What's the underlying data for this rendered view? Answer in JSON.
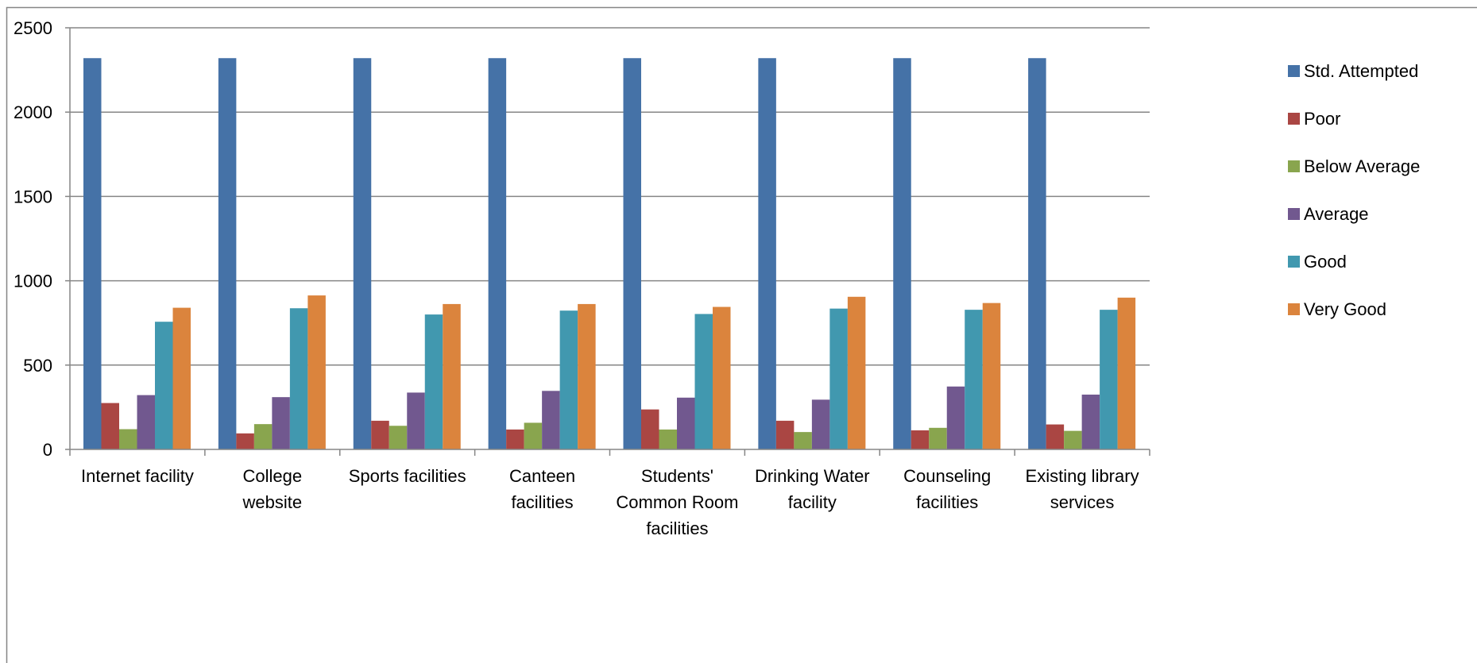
{
  "chart_data": {
    "type": "bar",
    "title": "",
    "xlabel": "",
    "ylabel": "",
    "ylim": [
      0,
      2500
    ],
    "yticks": [
      0,
      500,
      1000,
      1500,
      2000,
      2500
    ],
    "grid": true,
    "legend_position": "right",
    "categories": [
      [
        "Internet facility"
      ],
      [
        "College",
        "website"
      ],
      [
        "Sports facilities"
      ],
      [
        "Canteen",
        "facilities"
      ],
      [
        "Students'",
        "Common Room",
        "facilities"
      ],
      [
        "Drinking Water",
        "facility"
      ],
      [
        "Counseling",
        "facilities"
      ],
      [
        "Existing library",
        "services"
      ]
    ],
    "series": [
      {
        "name": "Std. Attempted",
        "color": "#4572A7",
        "values": [
          2320,
          2320,
          2320,
          2320,
          2320,
          2320,
          2320,
          2320
        ]
      },
      {
        "name": "Poor",
        "color": "#AA4643",
        "values": [
          275,
          95,
          170,
          118,
          237,
          170,
          113,
          148
        ]
      },
      {
        "name": "Below Average",
        "color": "#89A54E",
        "values": [
          120,
          150,
          140,
          158,
          118,
          103,
          128,
          110
        ]
      },
      {
        "name": "Average",
        "color": "#71588F",
        "values": [
          322,
          310,
          337,
          347,
          307,
          295,
          373,
          325
        ]
      },
      {
        "name": "Good",
        "color": "#4198AF",
        "values": [
          757,
          837,
          800,
          823,
          803,
          835,
          828,
          828
        ]
      },
      {
        "name": "Very Good",
        "color": "#DB843D",
        "values": [
          840,
          913,
          862,
          862,
          845,
          905,
          868,
          900
        ]
      }
    ]
  }
}
